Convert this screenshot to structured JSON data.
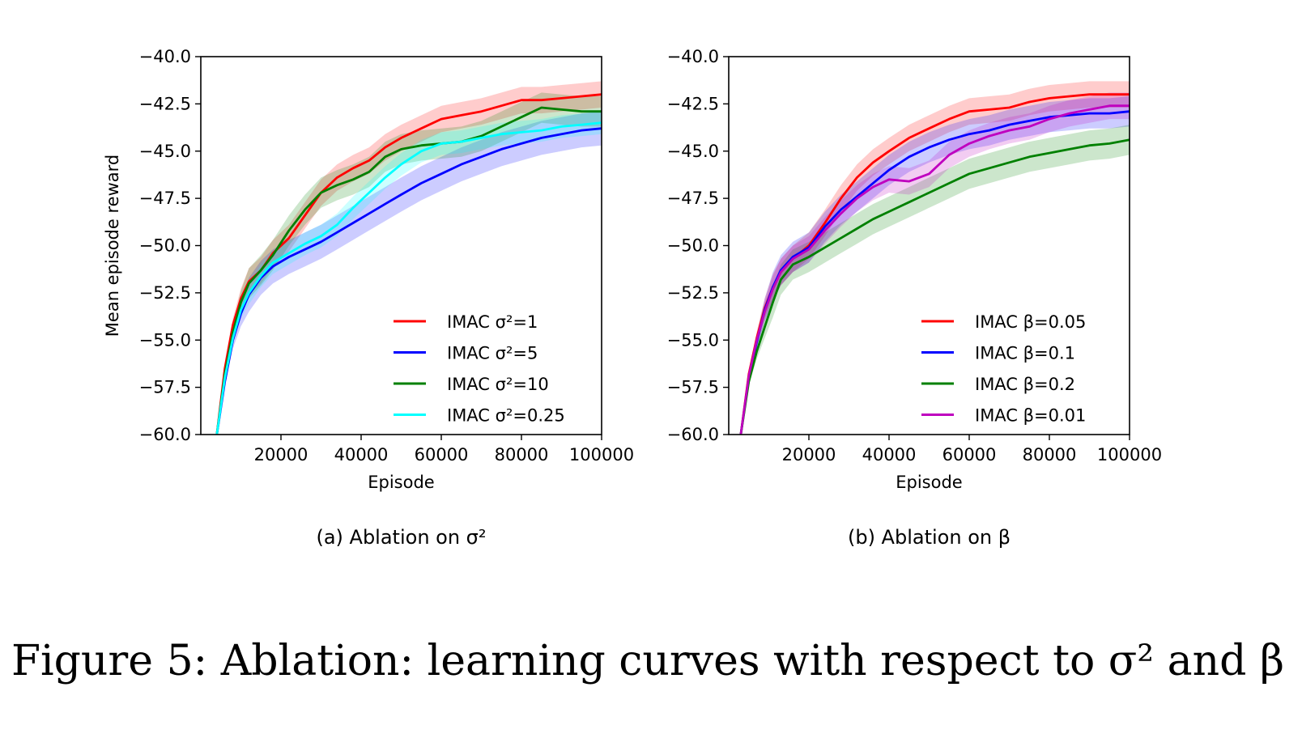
{
  "figure_caption": "Figure 5: Ablation: learning curves with respect to σ² and β",
  "chart_data": [
    {
      "type": "line",
      "subcaption": "(a) Ablation on σ²",
      "xlabel": "Episode",
      "ylabel": "Mean episode reward",
      "xlim": [
        0,
        100000
      ],
      "ylim": [
        -60,
        -40
      ],
      "xticks": [
        20000,
        40000,
        60000,
        80000,
        100000
      ],
      "yticks": [
        -60,
        -57.5,
        -55,
        -52.5,
        -50,
        -47.5,
        -45,
        -42.5,
        -40
      ],
      "xtick_labels": [
        "20000",
        "40000",
        "60000",
        "80000",
        "100000"
      ],
      "ytick_labels": [
        "−60.0",
        "−57.5",
        "−55.0",
        "−52.5",
        "−50.0",
        "−47.5",
        "−45.0",
        "−42.5",
        "−40.0"
      ],
      "legend_position": "lower-right",
      "grid": false,
      "x": [
        4000,
        6000,
        8000,
        10000,
        12000,
        15000,
        18000,
        22000,
        26000,
        30000,
        34000,
        38000,
        42000,
        46000,
        50000,
        55000,
        60000,
        65000,
        70000,
        75000,
        80000,
        85000,
        90000,
        95000,
        100000
      ],
      "series": [
        {
          "name": "IMAC σ²=1",
          "color": "#ff0000",
          "band": 0.7,
          "values": [
            -60,
            -56.5,
            -54.2,
            -52.8,
            -51.9,
            -51.3,
            -50.4,
            -49.6,
            -48.4,
            -47.2,
            -46.4,
            -45.9,
            -45.5,
            -44.8,
            -44.3,
            -43.8,
            -43.3,
            -43.1,
            -42.9,
            -42.6,
            -42.3,
            -42.3,
            -42.2,
            -42.1,
            -42.0
          ]
        },
        {
          "name": "IMAC σ²=5",
          "color": "#0000ff",
          "band": 0.9,
          "values": [
            -60,
            -57.2,
            -55.0,
            -53.6,
            -52.6,
            -51.7,
            -51.1,
            -50.6,
            -50.2,
            -49.8,
            -49.3,
            -48.8,
            -48.3,
            -47.8,
            -47.3,
            -46.7,
            -46.2,
            -45.7,
            -45.3,
            -44.9,
            -44.6,
            -44.3,
            -44.1,
            -43.9,
            -43.8
          ]
        },
        {
          "name": "IMAC σ²=10",
          "color": "#008000",
          "band": 0.8,
          "values": [
            -60,
            -56.8,
            -54.6,
            -53.0,
            -52.0,
            -51.3,
            -50.5,
            -49.2,
            -48.1,
            -47.2,
            -46.8,
            -46.5,
            -46.1,
            -45.3,
            -44.9,
            -44.7,
            -44.6,
            -44.5,
            -44.2,
            -43.7,
            -43.2,
            -42.7,
            -42.8,
            -42.9,
            -42.9
          ]
        },
        {
          "name": "IMAC σ²=0.25",
          "color": "#00ffff",
          "band": 0.6,
          "values": [
            -60,
            -57.0,
            -54.9,
            -53.4,
            -52.5,
            -51.6,
            -50.9,
            -50.4,
            -49.9,
            -49.5,
            -48.9,
            -48.0,
            -47.2,
            -46.4,
            -45.7,
            -45.0,
            -44.6,
            -44.5,
            -44.3,
            -44.1,
            -44.0,
            -43.9,
            -43.7,
            -43.6,
            -43.5
          ]
        }
      ]
    },
    {
      "type": "line",
      "subcaption": "(b) Ablation on β",
      "xlabel": "Episode",
      "ylabel": "",
      "xlim": [
        0,
        100000
      ],
      "ylim": [
        -60,
        -40
      ],
      "xticks": [
        20000,
        40000,
        60000,
        80000,
        100000
      ],
      "yticks": [
        -60,
        -57.5,
        -55,
        -52.5,
        -50,
        -47.5,
        -45,
        -42.5,
        -40
      ],
      "xtick_labels": [
        "20000",
        "40000",
        "60000",
        "80000",
        "100000"
      ],
      "ytick_labels": [
        "−60.0",
        "−57.5",
        "−55.0",
        "−52.5",
        "−50.0",
        "−47.5",
        "−45.0",
        "−42.5",
        "−40.0"
      ],
      "legend_position": "lower-right",
      "grid": false,
      "x": [
        3000,
        5000,
        7000,
        9000,
        11000,
        13000,
        16000,
        20000,
        24000,
        28000,
        32000,
        36000,
        40000,
        45000,
        50000,
        55000,
        60000,
        65000,
        70000,
        75000,
        80000,
        85000,
        90000,
        95000,
        100000
      ],
      "series": [
        {
          "name": "IMAC β=0.05",
          "color": "#ff0000",
          "band": 0.7,
          "values": [
            -60,
            -56.8,
            -54.9,
            -53.3,
            -52.2,
            -51.4,
            -50.7,
            -50.0,
            -48.8,
            -47.5,
            -46.4,
            -45.6,
            -45.0,
            -44.3,
            -43.8,
            -43.3,
            -42.9,
            -42.8,
            -42.7,
            -42.4,
            -42.2,
            -42.1,
            -42.0,
            -42.0,
            -42.0
          ]
        },
        {
          "name": "IMAC β=0.1",
          "color": "#0000ff",
          "band": 0.8,
          "values": [
            -60,
            -57.0,
            -55.1,
            -53.4,
            -52.2,
            -51.3,
            -50.6,
            -50.1,
            -49.0,
            -48.1,
            -47.4,
            -46.7,
            -46.0,
            -45.3,
            -44.8,
            -44.4,
            -44.1,
            -43.9,
            -43.6,
            -43.4,
            -43.2,
            -43.1,
            -43.0,
            -43.0,
            -42.9
          ]
        },
        {
          "name": "IMAC β=0.2",
          "color": "#008000",
          "band": 0.8,
          "values": [
            -60,
            -57.2,
            -55.6,
            -54.3,
            -53.0,
            -51.8,
            -51.0,
            -50.6,
            -50.1,
            -49.6,
            -49.1,
            -48.6,
            -48.2,
            -47.7,
            -47.2,
            -46.7,
            -46.2,
            -45.9,
            -45.6,
            -45.3,
            -45.1,
            -44.9,
            -44.7,
            -44.6,
            -44.4
          ]
        },
        {
          "name": "IMAC β=0.01",
          "color": "#bf00bf",
          "band": 0.7,
          "values": [
            -60,
            -56.9,
            -55.0,
            -53.5,
            -52.3,
            -51.4,
            -50.7,
            -50.2,
            -49.2,
            -48.3,
            -47.5,
            -46.9,
            -46.5,
            -46.6,
            -46.2,
            -45.2,
            -44.6,
            -44.2,
            -43.9,
            -43.7,
            -43.3,
            -43.0,
            -42.8,
            -42.6,
            -42.6
          ]
        }
      ]
    }
  ]
}
